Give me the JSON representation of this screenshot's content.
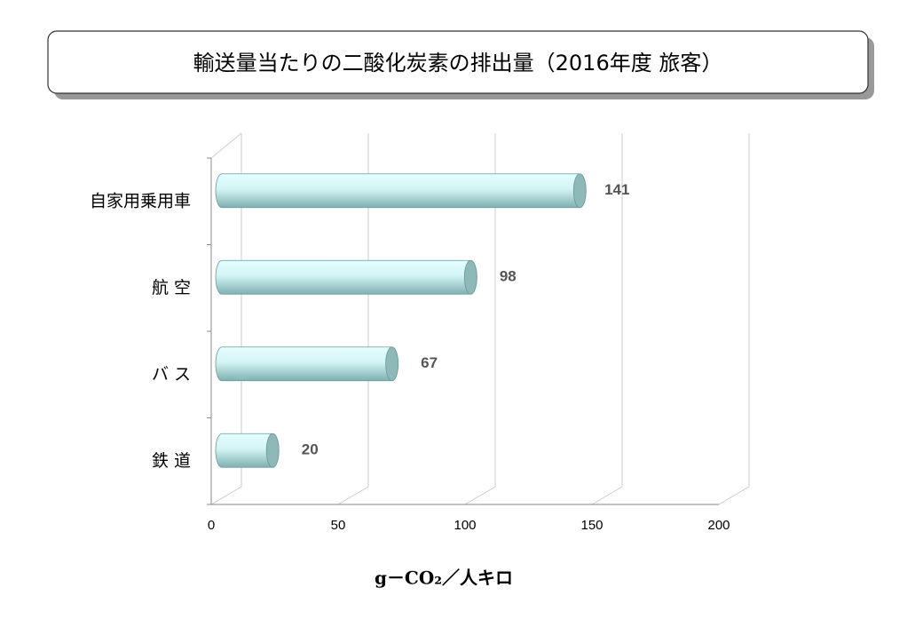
{
  "chart_data": {
    "type": "bar",
    "orientation": "horizontal",
    "title": "輸送量当たりの二酸化炭素の排出量（2016年度 旅客）",
    "x_label": "g－CO₂／人キロ",
    "categories": [
      "自家用乗用車",
      "航 空",
      "バ ス",
      "鉄 道"
    ],
    "values": [
      141,
      98,
      67,
      20
    ],
    "color": "#b8e6e6",
    "xlim": [
      0,
      200
    ],
    "xticks": [
      0,
      50,
      100,
      150,
      200
    ],
    "grid": true
  }
}
